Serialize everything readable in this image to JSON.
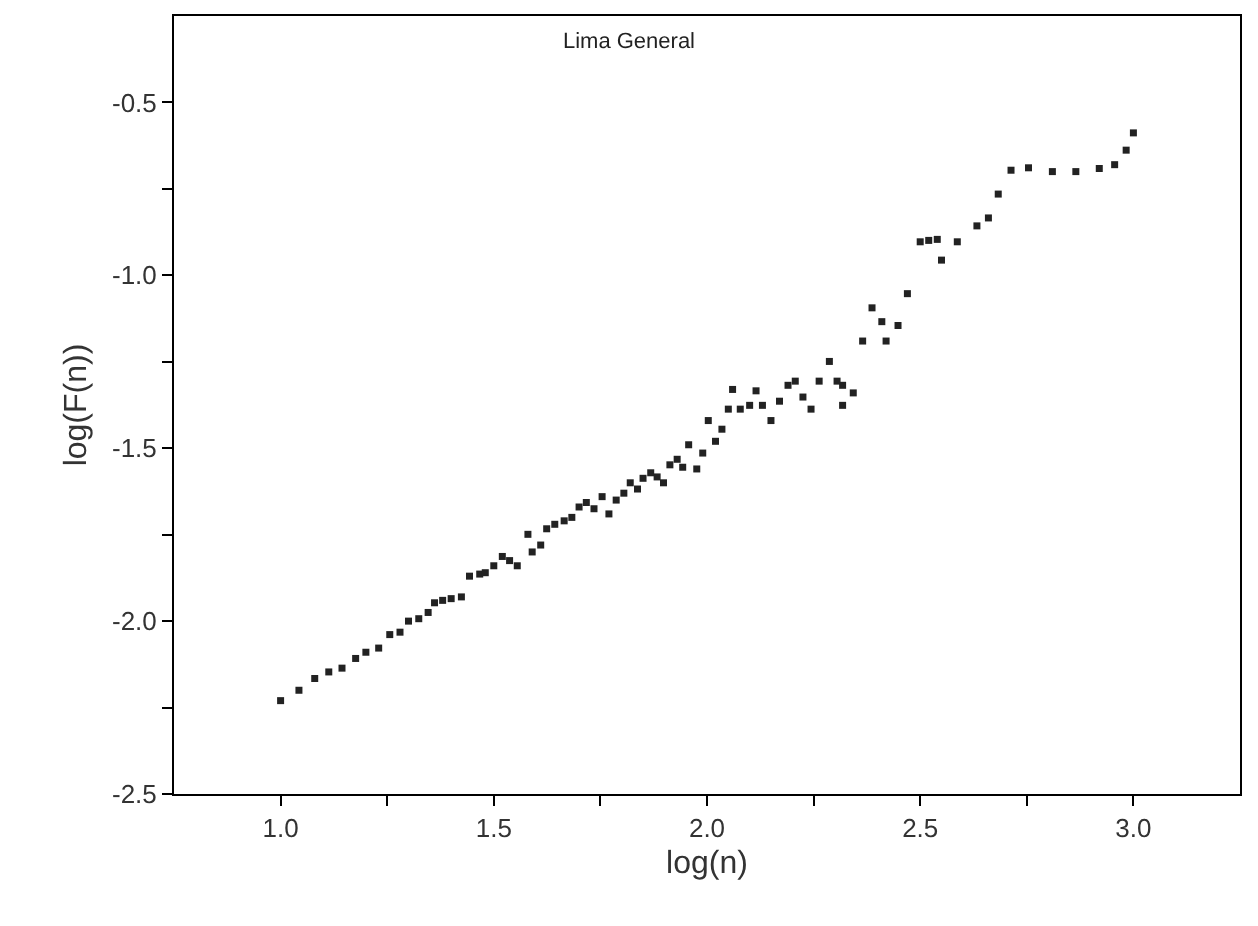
{
  "chart_data": {
    "type": "scatter",
    "title": "Lima General",
    "xlabel": "log(n)",
    "ylabel": "log(F(n))",
    "marker": "square",
    "legend": false,
    "xlim": [
      0.75,
      3.25
    ],
    "ylim": [
      -2.5,
      -0.25
    ],
    "xticks": [
      {
        "value": 1,
        "label": "1.0"
      },
      1.5,
      {
        "value": 2,
        "label": "2.0"
      },
      2.5,
      {
        "value": 3,
        "label": "3.0"
      },
      {
        "value": 1.25,
        "label": null
      },
      {
        "value": 1.75,
        "label": null
      },
      {
        "value": 2.25,
        "label": null
      },
      {
        "value": 2.75,
        "label": null
      }
    ],
    "yticks": [
      -2.5,
      {
        "value": -2,
        "label": "-2.0"
      },
      -1.5,
      {
        "value": -1,
        "label": "-1.0"
      },
      -0.5,
      {
        "value": -2.25,
        "label": null
      },
      {
        "value": -1.75,
        "label": null
      },
      {
        "value": -1.25,
        "label": null
      },
      {
        "value": -0.75,
        "label": null
      }
    ],
    "series": [
      {
        "color": "#222222",
        "x": [
          1.0,
          1.043,
          1.08,
          1.113,
          1.144,
          1.176,
          1.2,
          1.23,
          1.256,
          1.28,
          1.3,
          1.324,
          1.346,
          1.361,
          1.38,
          1.4,
          1.424,
          1.443,
          1.467,
          1.48,
          1.5,
          1.52,
          1.537,
          1.555,
          1.58,
          1.59,
          1.61,
          1.624,
          1.643,
          1.665,
          1.683,
          1.7,
          1.717,
          1.735,
          1.754,
          1.77,
          1.787,
          1.805,
          1.82,
          1.837,
          1.85,
          1.868,
          1.883,
          1.898,
          1.913,
          1.93,
          1.943,
          1.957,
          1.976,
          1.99,
          2.003,
          2.02,
          2.035,
          2.05,
          2.06,
          2.078,
          2.1,
          2.115,
          2.13,
          2.15,
          2.17,
          2.19,
          2.207,
          2.225,
          2.244,
          2.263,
          2.287,
          2.305,
          2.318,
          2.318,
          2.343,
          2.365,
          2.387,
          2.41,
          2.42,
          2.448,
          2.47,
          2.5,
          2.52,
          2.54,
          2.55,
          2.587,
          2.633,
          2.66,
          2.683,
          2.713,
          2.754,
          2.81,
          2.865,
          2.92,
          2.956,
          2.983,
          3.0
        ],
        "values": [
          -2.23,
          -2.2,
          -2.166,
          -2.147,
          -2.136,
          -2.108,
          -2.09,
          -2.078,
          -2.039,
          -2.032,
          -2.0,
          -1.993,
          -1.975,
          -1.947,
          -1.94,
          -1.935,
          -1.93,
          -1.87,
          -1.864,
          -1.86,
          -1.84,
          -1.813,
          -1.825,
          -1.84,
          -1.749,
          -1.8,
          -1.78,
          -1.733,
          -1.72,
          -1.71,
          -1.7,
          -1.67,
          -1.657,
          -1.675,
          -1.64,
          -1.69,
          -1.65,
          -1.63,
          -1.6,
          -1.618,
          -1.587,
          -1.571,
          -1.583,
          -1.6,
          -1.548,
          -1.532,
          -1.555,
          -1.49,
          -1.56,
          -1.514,
          -1.42,
          -1.48,
          -1.445,
          -1.387,
          -1.33,
          -1.387,
          -1.376,
          -1.334,
          -1.376,
          -1.42,
          -1.364,
          -1.318,
          -1.306,
          -1.352,
          -1.387,
          -1.306,
          -1.249,
          -1.306,
          -1.318,
          -1.376,
          -1.34,
          -1.19,
          -1.094,
          -1.134,
          -1.19,
          -1.145,
          -1.053,
          -0.903,
          -0.899,
          -0.896,
          -0.956,
          -0.903,
          -0.857,
          -0.834,
          -0.765,
          -0.696,
          -0.689,
          -0.7,
          -0.7,
          -0.691,
          -0.68,
          -0.638,
          -0.588
        ]
      }
    ]
  }
}
